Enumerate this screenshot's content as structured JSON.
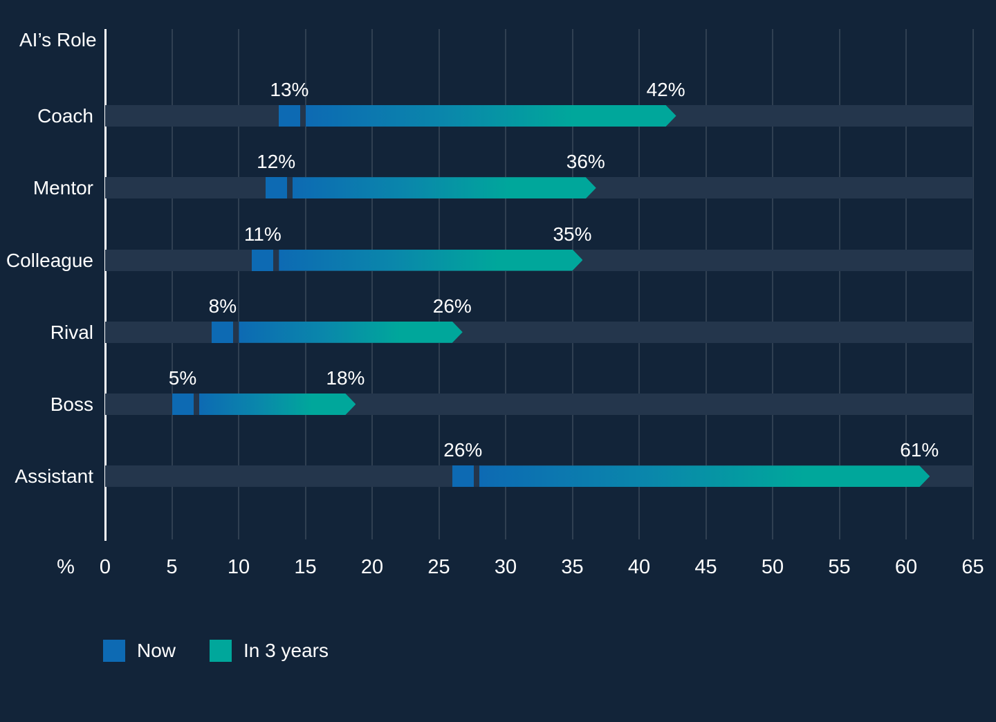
{
  "chart_data": {
    "type": "bar",
    "orientation": "horizontal",
    "axis_title": "AI’s Role",
    "x_unit_label": "%",
    "categories": [
      "Coach",
      "Mentor",
      "Colleague",
      "Rival",
      "Boss",
      "Assistant"
    ],
    "series": [
      {
        "name": "Now",
        "values": [
          13,
          12,
          11,
          8,
          5,
          26
        ]
      },
      {
        "name": "In 3 years",
        "values": [
          42,
          36,
          35,
          26,
          18,
          61
        ]
      }
    ],
    "value_label_suffix": "%",
    "x_ticks": [
      0,
      5,
      10,
      15,
      20,
      25,
      30,
      35,
      40,
      45,
      50,
      55,
      60,
      65
    ],
    "xlim": [
      0,
      65
    ],
    "grid": true,
    "legend_position": "bottom"
  },
  "colors": {
    "background": "#122439",
    "row_band": "#24364c",
    "gridline": "rgba(255,255,255,0.13)",
    "axis_line": "#ffffff",
    "text": "#ffffff",
    "now_blue": "#0d6ab3",
    "future_teal": "#00a79b",
    "gradient_mid": "#0a87ab"
  }
}
